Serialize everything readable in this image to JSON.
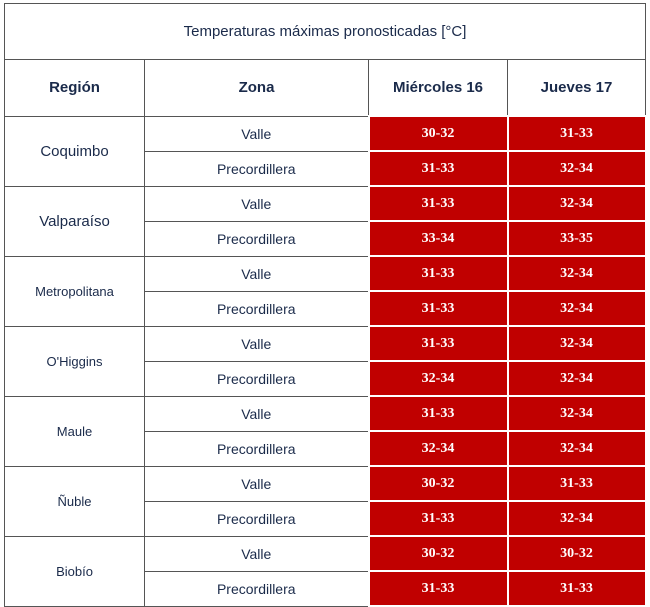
{
  "title": "Temperaturas máximas pronosticadas [°C]",
  "headers": {
    "region": "Región",
    "zona": "Zona",
    "day1": "Miércoles 16",
    "day2": "Jueves 17"
  },
  "colors": {
    "hot": "#c00000",
    "text": "#1a2a4a"
  },
  "regions": [
    {
      "name": "Coquimbo",
      "rows": [
        {
          "zona": "Valle",
          "d1": "30-32",
          "d2": "31-33"
        },
        {
          "zona": "Precordillera",
          "d1": "31-33",
          "d2": "32-34"
        }
      ]
    },
    {
      "name": "Valparaíso",
      "rows": [
        {
          "zona": "Valle",
          "d1": "31-33",
          "d2": "32-34"
        },
        {
          "zona": "Precordillera",
          "d1": "33-34",
          "d2": "33-35"
        }
      ]
    },
    {
      "name": "Metropolitana",
      "rows": [
        {
          "zona": "Valle",
          "d1": "31-33",
          "d2": "32-34"
        },
        {
          "zona": "Precordillera",
          "d1": "31-33",
          "d2": "32-34"
        }
      ]
    },
    {
      "name": "O'Higgins",
      "rows": [
        {
          "zona": "Valle",
          "d1": "31-33",
          "d2": "32-34"
        },
        {
          "zona": "Precordillera",
          "d1": "32-34",
          "d2": "32-34"
        }
      ]
    },
    {
      "name": "Maule",
      "rows": [
        {
          "zona": "Valle",
          "d1": "31-33",
          "d2": "32-34"
        },
        {
          "zona": "Precordillera",
          "d1": "32-34",
          "d2": "32-34"
        }
      ]
    },
    {
      "name": "Ñuble",
      "rows": [
        {
          "zona": "Valle",
          "d1": "30-32",
          "d2": "31-33"
        },
        {
          "zona": "Precordillera",
          "d1": "31-33",
          "d2": "32-34"
        }
      ]
    },
    {
      "name": "Biobío",
      "rows": [
        {
          "zona": "Valle",
          "d1": "30-32",
          "d2": "30-32"
        },
        {
          "zona": "Precordillera",
          "d1": "31-33",
          "d2": "31-33"
        }
      ]
    }
  ]
}
